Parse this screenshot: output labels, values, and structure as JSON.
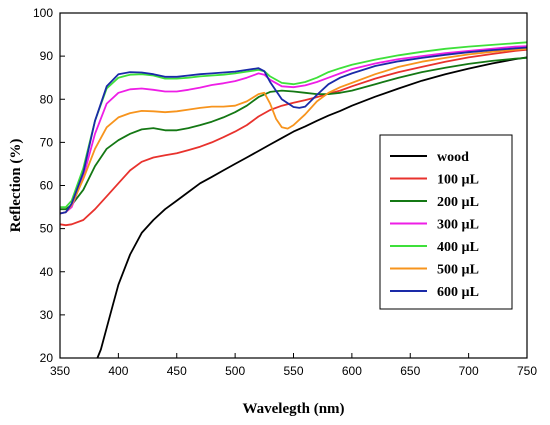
{
  "chart_data": {
    "type": "line",
    "title": "",
    "xlabel": "Wavelegth (nm)",
    "ylabel": "Reflection (%)",
    "xlim": [
      350,
      750
    ],
    "ylim": [
      20,
      100
    ],
    "xticks": [
      350,
      400,
      450,
      500,
      550,
      600,
      650,
      700,
      750
    ],
    "yticks": [
      20,
      30,
      40,
      50,
      60,
      70,
      80,
      90,
      100
    ],
    "legend_position": "right",
    "series": [
      {
        "name": "wood",
        "color": "#000000",
        "points": [
          [
            382,
            20
          ],
          [
            385,
            22
          ],
          [
            390,
            27
          ],
          [
            395,
            32
          ],
          [
            400,
            37
          ],
          [
            410,
            44
          ],
          [
            420,
            49
          ],
          [
            430,
            52
          ],
          [
            440,
            54.5
          ],
          [
            450,
            56.5
          ],
          [
            460,
            58.5
          ],
          [
            470,
            60.5
          ],
          [
            480,
            62
          ],
          [
            490,
            63.5
          ],
          [
            500,
            65
          ],
          [
            510,
            66.5
          ],
          [
            520,
            68
          ],
          [
            530,
            69.5
          ],
          [
            540,
            71
          ],
          [
            550,
            72.5
          ],
          [
            560,
            73.7
          ],
          [
            570,
            75
          ],
          [
            580,
            76.2
          ],
          [
            590,
            77.3
          ],
          [
            600,
            78.5
          ],
          [
            620,
            80.6
          ],
          [
            640,
            82.5
          ],
          [
            660,
            84.3
          ],
          [
            680,
            85.8
          ],
          [
            700,
            87.1
          ],
          [
            720,
            88.3
          ],
          [
            740,
            89.3
          ],
          [
            750,
            89.7
          ]
        ]
      },
      {
        "name": "100 µL",
        "color": "#e8322d",
        "points": [
          [
            350,
            51
          ],
          [
            355,
            50.8
          ],
          [
            360,
            51
          ],
          [
            370,
            52
          ],
          [
            380,
            54.5
          ],
          [
            390,
            57.5
          ],
          [
            400,
            60.5
          ],
          [
            410,
            63.5
          ],
          [
            420,
            65.5
          ],
          [
            430,
            66.5
          ],
          [
            440,
            67
          ],
          [
            450,
            67.5
          ],
          [
            460,
            68.2
          ],
          [
            470,
            69
          ],
          [
            480,
            70
          ],
          [
            490,
            71.2
          ],
          [
            500,
            72.5
          ],
          [
            510,
            74
          ],
          [
            520,
            76
          ],
          [
            530,
            77.5
          ],
          [
            540,
            78.5
          ],
          [
            550,
            79.2
          ],
          [
            560,
            79.8
          ],
          [
            570,
            80.5
          ],
          [
            580,
            81.3
          ],
          [
            590,
            82
          ],
          [
            600,
            83
          ],
          [
            620,
            84.8
          ],
          [
            640,
            86.3
          ],
          [
            660,
            87.5
          ],
          [
            680,
            88.7
          ],
          [
            700,
            89.7
          ],
          [
            720,
            90.5
          ],
          [
            740,
            91.2
          ],
          [
            750,
            91.5
          ]
        ]
      },
      {
        "name": "200 µL",
        "color": "#147814",
        "points": [
          [
            350,
            54.5
          ],
          [
            355,
            54.5
          ],
          [
            360,
            55.5
          ],
          [
            370,
            59
          ],
          [
            380,
            64.5
          ],
          [
            390,
            68.5
          ],
          [
            400,
            70.5
          ],
          [
            410,
            72
          ],
          [
            420,
            73
          ],
          [
            430,
            73.3
          ],
          [
            440,
            72.8
          ],
          [
            450,
            72.8
          ],
          [
            460,
            73.3
          ],
          [
            470,
            74
          ],
          [
            480,
            74.8
          ],
          [
            490,
            75.8
          ],
          [
            500,
            77
          ],
          [
            510,
            78.5
          ],
          [
            520,
            80.5
          ],
          [
            530,
            81.7
          ],
          [
            540,
            82
          ],
          [
            550,
            81.8
          ],
          [
            560,
            81.5
          ],
          [
            570,
            81.2
          ],
          [
            580,
            81.2
          ],
          [
            590,
            81.5
          ],
          [
            600,
            82
          ],
          [
            620,
            83.5
          ],
          [
            640,
            85
          ],
          [
            660,
            86.3
          ],
          [
            680,
            87.3
          ],
          [
            700,
            88.2
          ],
          [
            720,
            88.9
          ],
          [
            740,
            89.4
          ],
          [
            750,
            89.6
          ]
        ]
      },
      {
        "name": "300 µL",
        "color": "#ee1ee6",
        "points": [
          [
            350,
            53.5
          ],
          [
            355,
            53.8
          ],
          [
            360,
            55
          ],
          [
            370,
            62
          ],
          [
            380,
            72
          ],
          [
            390,
            79
          ],
          [
            400,
            81.5
          ],
          [
            410,
            82.3
          ],
          [
            420,
            82.5
          ],
          [
            430,
            82.2
          ],
          [
            440,
            81.8
          ],
          [
            450,
            81.8
          ],
          [
            460,
            82.2
          ],
          [
            470,
            82.7
          ],
          [
            480,
            83.3
          ],
          [
            490,
            83.7
          ],
          [
            500,
            84.2
          ],
          [
            510,
            85
          ],
          [
            520,
            86
          ],
          [
            525,
            85.7
          ],
          [
            530,
            84.5
          ],
          [
            540,
            83
          ],
          [
            550,
            82.8
          ],
          [
            560,
            83.2
          ],
          [
            570,
            84
          ],
          [
            580,
            85
          ],
          [
            590,
            86
          ],
          [
            600,
            87
          ],
          [
            620,
            88.3
          ],
          [
            640,
            89.3
          ],
          [
            660,
            90
          ],
          [
            680,
            90.7
          ],
          [
            700,
            91.2
          ],
          [
            720,
            91.7
          ],
          [
            740,
            92.2
          ],
          [
            750,
            92.3
          ]
        ]
      },
      {
        "name": "400 µL",
        "color": "#3ee03a",
        "points": [
          [
            350,
            55
          ],
          [
            355,
            55
          ],
          [
            360,
            56.5
          ],
          [
            370,
            64
          ],
          [
            380,
            75
          ],
          [
            390,
            82.5
          ],
          [
            400,
            85
          ],
          [
            410,
            85.7
          ],
          [
            420,
            85.8
          ],
          [
            430,
            85.5
          ],
          [
            440,
            84.8
          ],
          [
            450,
            84.8
          ],
          [
            460,
            85
          ],
          [
            470,
            85.3
          ],
          [
            480,
            85.5
          ],
          [
            490,
            85.7
          ],
          [
            500,
            86
          ],
          [
            510,
            86.4
          ],
          [
            520,
            86.8
          ],
          [
            525,
            86.5
          ],
          [
            530,
            85.3
          ],
          [
            540,
            83.8
          ],
          [
            550,
            83.5
          ],
          [
            560,
            84
          ],
          [
            570,
            85
          ],
          [
            580,
            86.3
          ],
          [
            590,
            87.2
          ],
          [
            600,
            88
          ],
          [
            620,
            89.2
          ],
          [
            640,
            90.2
          ],
          [
            660,
            91
          ],
          [
            680,
            91.7
          ],
          [
            700,
            92.2
          ],
          [
            720,
            92.6
          ],
          [
            740,
            93
          ],
          [
            750,
            93.2
          ]
        ]
      },
      {
        "name": "500 µL",
        "color": "#f7941d",
        "points": [
          [
            350,
            53.5
          ],
          [
            355,
            53.8
          ],
          [
            360,
            55.5
          ],
          [
            370,
            61.5
          ],
          [
            380,
            68.5
          ],
          [
            390,
            73.5
          ],
          [
            400,
            75.8
          ],
          [
            410,
            76.8
          ],
          [
            420,
            77.3
          ],
          [
            430,
            77.2
          ],
          [
            440,
            77
          ],
          [
            450,
            77.2
          ],
          [
            460,
            77.6
          ],
          [
            470,
            78
          ],
          [
            480,
            78.3
          ],
          [
            490,
            78.3
          ],
          [
            500,
            78.5
          ],
          [
            510,
            79.5
          ],
          [
            520,
            81.2
          ],
          [
            525,
            81.5
          ],
          [
            530,
            79
          ],
          [
            535,
            75.5
          ],
          [
            540,
            73.5
          ],
          [
            545,
            73.2
          ],
          [
            550,
            74
          ],
          [
            560,
            76.5
          ],
          [
            570,
            79.5
          ],
          [
            580,
            81.5
          ],
          [
            590,
            82.8
          ],
          [
            600,
            83.8
          ],
          [
            620,
            85.8
          ],
          [
            640,
            87.5
          ],
          [
            660,
            88.7
          ],
          [
            680,
            89.6
          ],
          [
            700,
            90.4
          ],
          [
            720,
            91
          ],
          [
            740,
            91.5
          ],
          [
            750,
            91.7
          ]
        ]
      },
      {
        "name": "600 µL",
        "color": "#1a2aa8",
        "points": [
          [
            350,
            53.5
          ],
          [
            355,
            53.8
          ],
          [
            360,
            55.8
          ],
          [
            370,
            63
          ],
          [
            380,
            75
          ],
          [
            390,
            83
          ],
          [
            400,
            85.8
          ],
          [
            410,
            86.3
          ],
          [
            420,
            86.2
          ],
          [
            430,
            85.8
          ],
          [
            440,
            85.2
          ],
          [
            450,
            85.2
          ],
          [
            460,
            85.5
          ],
          [
            470,
            85.8
          ],
          [
            480,
            86
          ],
          [
            490,
            86.2
          ],
          [
            500,
            86.4
          ],
          [
            510,
            86.8
          ],
          [
            520,
            87.2
          ],
          [
            525,
            86.5
          ],
          [
            530,
            84
          ],
          [
            540,
            80
          ],
          [
            550,
            78.2
          ],
          [
            555,
            78
          ],
          [
            560,
            78.3
          ],
          [
            570,
            81
          ],
          [
            580,
            83.5
          ],
          [
            590,
            85
          ],
          [
            600,
            86
          ],
          [
            620,
            87.7
          ],
          [
            640,
            88.8
          ],
          [
            660,
            89.6
          ],
          [
            680,
            90.3
          ],
          [
            700,
            90.9
          ],
          [
            720,
            91.4
          ],
          [
            740,
            91.8
          ],
          [
            750,
            92
          ]
        ]
      }
    ]
  }
}
